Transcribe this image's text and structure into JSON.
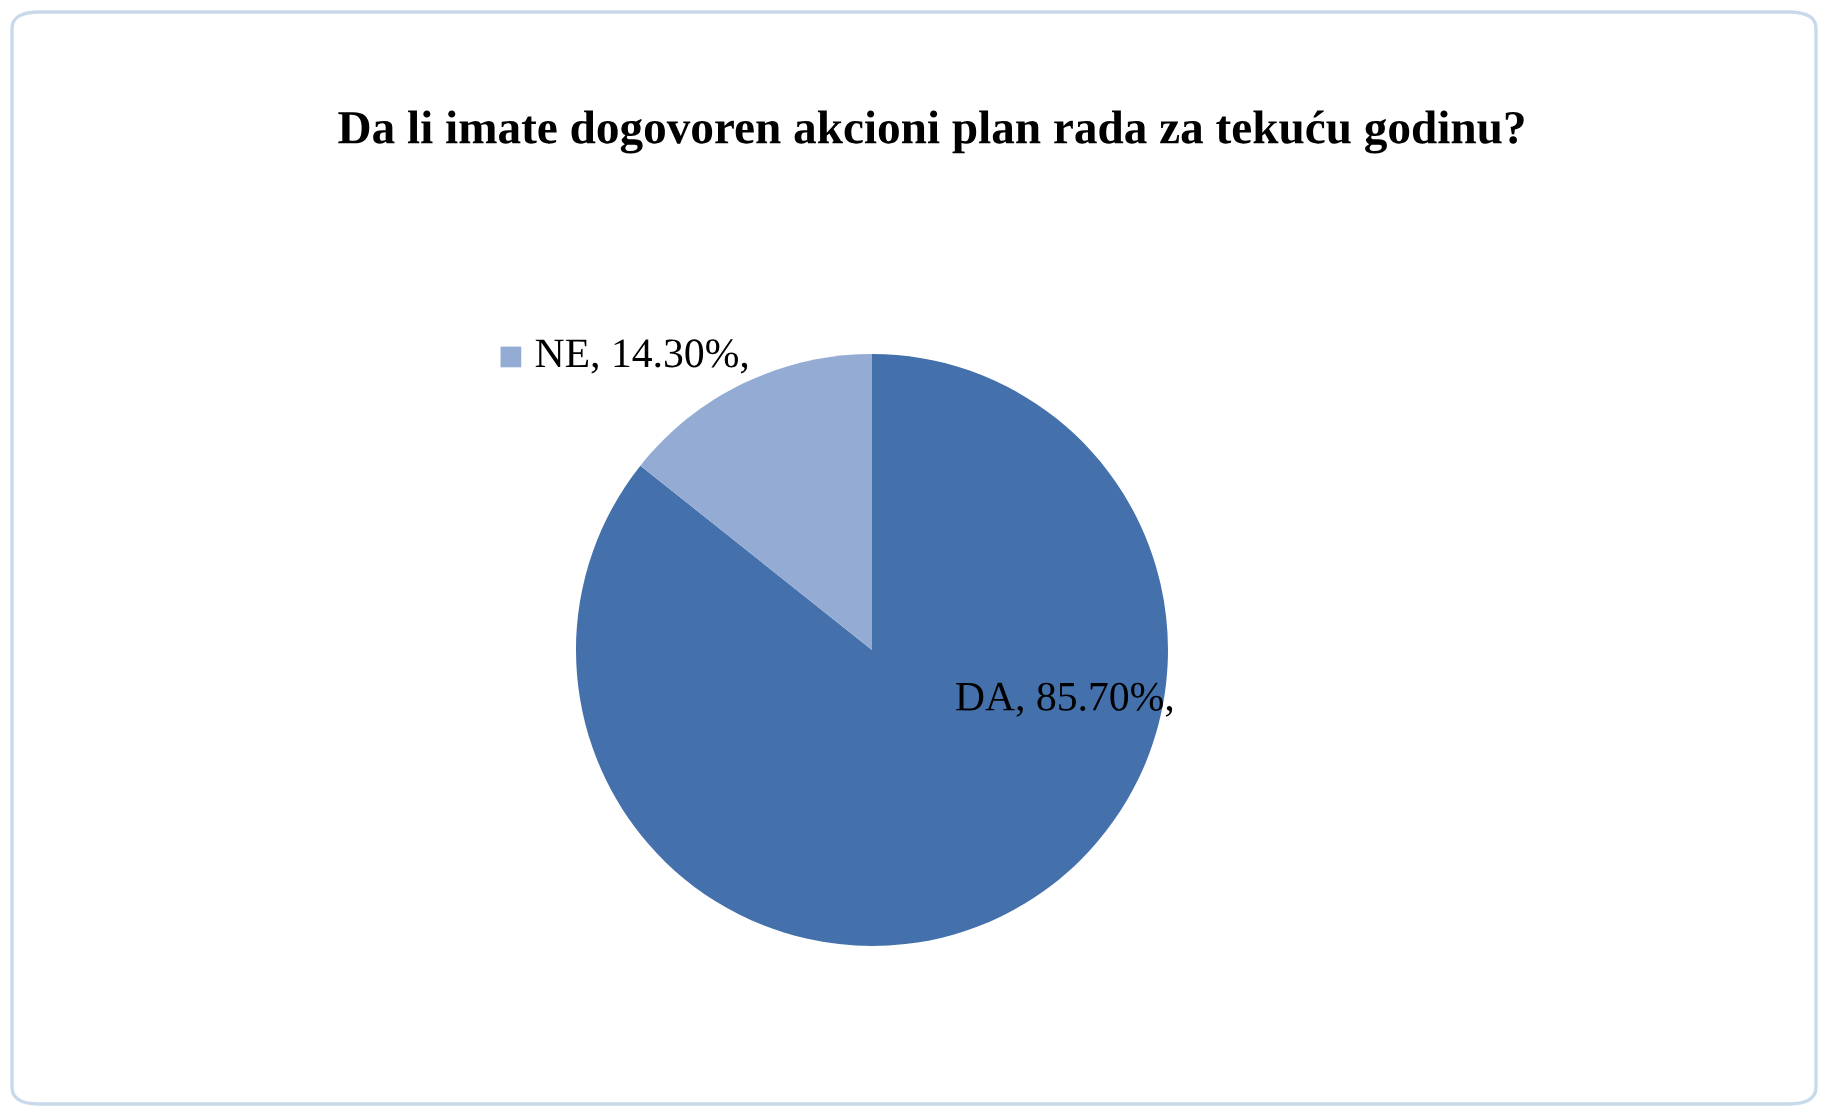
{
  "chart_data": {
    "type": "pie",
    "title": "Da li imate dogovoren akcioni plan rada za tekuću godinu?",
    "categories": [
      "DA",
      "NE"
    ],
    "values": [
      85.7,
      14.3
    ],
    "colors": [
      "#4470ab",
      "#94acd3"
    ],
    "value_labels": [
      "85.70%,",
      "14.30%,"
    ]
  }
}
